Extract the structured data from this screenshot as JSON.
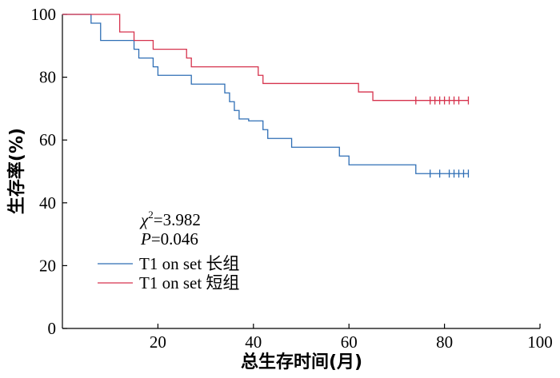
{
  "chart_data": {
    "type": "line",
    "step": true,
    "xlabel": "总生存时间(月)",
    "ylabel": "生存率(%)",
    "xlim": [
      0,
      100
    ],
    "ylim": [
      0,
      100
    ],
    "xticks": [
      20,
      40,
      60,
      80,
      100
    ],
    "yticks": [
      0,
      20,
      40,
      60,
      80,
      100
    ],
    "grid": false,
    "legend_position": "lower-left",
    "annotation": {
      "chi_symbol": "χ",
      "chi_sup": "2",
      "chi_value": "=3.982",
      "p_symbol": "P",
      "p_value": "=0.046"
    },
    "series": [
      {
        "name": "T1 on set 长组",
        "color": "#2e6eb5",
        "x": [
          0,
          6,
          8,
          15,
          16,
          19,
          20,
          27,
          34,
          35,
          36,
          37,
          39,
          42,
          43,
          48,
          58,
          60,
          74,
          85
        ],
        "y": [
          100,
          97.2,
          91.7,
          88.9,
          86.1,
          83.3,
          80.6,
          77.8,
          75,
          72.2,
          69.4,
          66.7,
          66.1,
          63.3,
          60.5,
          57.7,
          54.9,
          52.1,
          49.3,
          49.3
        ],
        "censored_x": [
          77,
          79,
          81,
          82,
          83,
          84,
          85
        ]
      },
      {
        "name": "T1 on set 短组",
        "color": "#d6334d",
        "x": [
          0,
          12,
          15,
          19,
          26,
          27,
          41,
          42,
          62,
          65,
          85
        ],
        "y": [
          100,
          94.4,
          91.7,
          88.9,
          86.1,
          83.3,
          80.6,
          78,
          75.3,
          72.6,
          72.6
        ],
        "censored_x": [
          74,
          77,
          78,
          79,
          80,
          81,
          82,
          83,
          85
        ]
      }
    ]
  }
}
